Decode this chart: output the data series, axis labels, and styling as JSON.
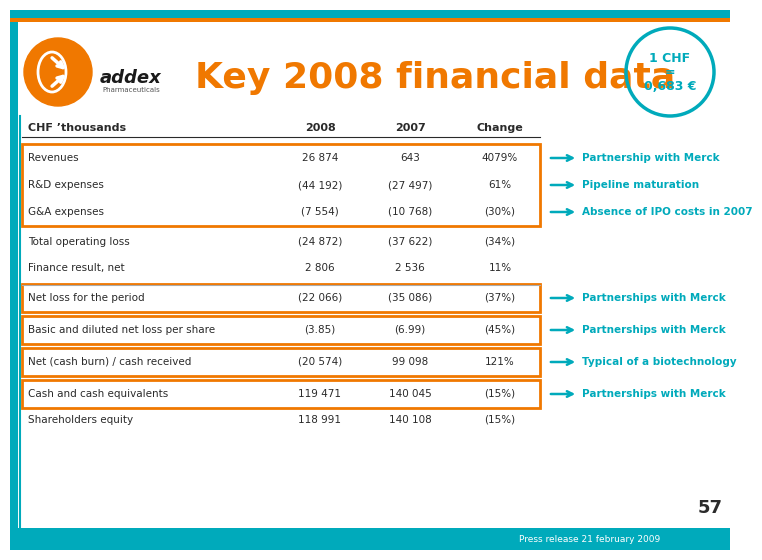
{
  "title": "Key 2008 financial data",
  "title_color": "#F07800",
  "background_color": "#FFFFFF",
  "teal_color": "#00AABB",
  "orange_color": "#F07800",
  "header_row": [
    "CHF ’thousands",
    "2008",
    "2007",
    "Change"
  ],
  "rows": [
    {
      "label": "Revenues",
      "v2008": "26 874",
      "v2007": "643",
      "change": "4079%",
      "boxed": true,
      "annotation": "Partnership with Merck"
    },
    {
      "label": "R&D expenses",
      "v2008": "(44 192)",
      "v2007": "(27 497)",
      "change": "61%",
      "boxed": true,
      "annotation": "Pipeline maturation"
    },
    {
      "label": "G&A expenses",
      "v2008": "(7 554)",
      "v2007": "(10 768)",
      "change": "(30%)",
      "boxed": true,
      "annotation": "Absence of IPO costs in 2007"
    },
    {
      "label": "Total operating loss",
      "v2008": "(24 872)",
      "v2007": "(37 622)",
      "change": "(34%)",
      "boxed": false,
      "annotation": ""
    },
    {
      "label": "Finance result, net",
      "v2008": "2 806",
      "v2007": "2 536",
      "change": "11%",
      "boxed": false,
      "annotation": ""
    },
    {
      "label": "Net loss for the period",
      "v2008": "(22 066)",
      "v2007": "(35 086)",
      "change": "(37%)",
      "boxed": true,
      "annotation": "Partnerships with Merck"
    },
    {
      "label": "Basic and diluted net loss per share",
      "v2008": "(3.85)",
      "v2007": "(6.99)",
      "change": "(45%)",
      "boxed": true,
      "annotation": "Partnerships with Merck"
    },
    {
      "label": "Net (cash burn) / cash received",
      "v2008": "(20 574)",
      "v2007": "99 098",
      "change": "121%",
      "boxed": true,
      "annotation": "Typical of a biotechnology"
    },
    {
      "label": "Cash and cash equivalents",
      "v2008": "119 471",
      "v2007": "140 045",
      "change": "(15%)",
      "boxed": true,
      "annotation": "Partnerships with Merck"
    },
    {
      "label": "Shareholders equity",
      "v2008": "118 991",
      "v2007": "140 108",
      "change": "(15%)",
      "boxed": false,
      "annotation": ""
    }
  ],
  "footer_number": "57",
  "footer_text": "Press release 21 february 2009"
}
